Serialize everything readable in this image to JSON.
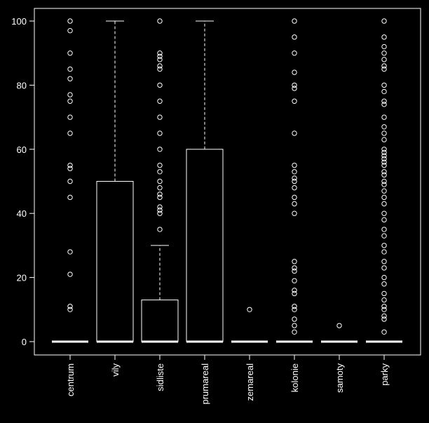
{
  "chart_data": {
    "type": "boxplot",
    "ylim": [
      0,
      100
    ],
    "y_ticks": [
      "0",
      "20",
      "40",
      "60",
      "80",
      "100"
    ],
    "categories": [
      "centrum",
      "vily",
      "sidliste",
      "prumareal",
      "zemareal",
      "kolonie",
      "samoty",
      "parky"
    ],
    "boxes": [
      {
        "category": "centrum",
        "q1": 0,
        "median": 0,
        "q3": 0,
        "whisker_low": 0,
        "whisker_high": 0,
        "outliers": [
          100,
          97,
          90,
          85,
          82,
          77,
          75,
          70,
          65,
          55,
          54,
          50,
          45,
          28,
          21,
          11,
          10
        ]
      },
      {
        "category": "vily",
        "q1": 0,
        "median": 0,
        "q3": 50,
        "whisker_low": 0,
        "whisker_high": 100,
        "outliers": []
      },
      {
        "category": "sidliste",
        "q1": 0,
        "median": 0,
        "q3": 13,
        "whisker_low": 0,
        "whisker_high": 30,
        "outliers": [
          100,
          90,
          89,
          88,
          86,
          85,
          80,
          75,
          70,
          65,
          60,
          55,
          53,
          50,
          48,
          46,
          45,
          42,
          41,
          40,
          35
        ]
      },
      {
        "category": "prumareal",
        "q1": 0,
        "median": 0,
        "q3": 60,
        "whisker_low": 0,
        "whisker_high": 100,
        "outliers": []
      },
      {
        "category": "zemareal",
        "q1": 0,
        "median": 0,
        "q3": 0,
        "whisker_low": 0,
        "whisker_high": 0,
        "outliers": [
          10
        ]
      },
      {
        "category": "kolonie",
        "q1": 0,
        "median": 0,
        "q3": 0,
        "whisker_low": 0,
        "whisker_high": 0,
        "outliers": [
          100,
          95,
          90,
          84,
          80,
          79,
          75,
          65,
          55,
          53,
          51,
          50,
          48,
          45,
          43,
          40,
          25,
          23,
          22,
          19,
          16,
          15,
          11,
          10,
          7,
          5,
          3
        ]
      },
      {
        "category": "samoty",
        "q1": 0,
        "median": 0,
        "q3": 0,
        "whisker_low": 0,
        "whisker_high": 0,
        "outliers": [
          5
        ]
      },
      {
        "category": "parky",
        "q1": 0,
        "median": 0,
        "q3": 0,
        "whisker_low": 0,
        "whisker_high": 0,
        "outliers": [
          100,
          95,
          92,
          90,
          88,
          86,
          85,
          80,
          78,
          75,
          74,
          70,
          67,
          65,
          63,
          60,
          59,
          58,
          57,
          56,
          55,
          53,
          52,
          50,
          49,
          47,
          45,
          43,
          40,
          38,
          35,
          33,
          30,
          28,
          25,
          23,
          20,
          18,
          15,
          13,
          11,
          10,
          8,
          7,
          3
        ]
      }
    ],
    "colors": {
      "background": "#000000",
      "foreground": "#ffffff"
    }
  }
}
